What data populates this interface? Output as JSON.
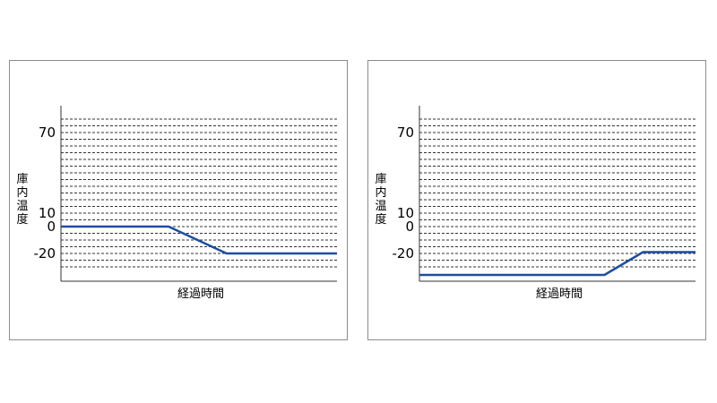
{
  "chart_data": [
    {
      "type": "line",
      "title": "",
      "ylabel": "庫内温度",
      "xlabel": "経過時間",
      "y_ticks": [
        {
          "value": 70,
          "label": "70"
        },
        {
          "value": 10,
          "label": "10"
        },
        {
          "value": 0,
          "label": "0"
        },
        {
          "value": -20,
          "label": "-20"
        }
      ],
      "grid": true,
      "grid_style": "dashed",
      "x": [
        0,
        0.39,
        0.6,
        1.0
      ],
      "series": [
        {
          "values": [
            0,
            0,
            -20,
            -20
          ]
        }
      ],
      "ylim": [
        -40,
        80
      ],
      "line_color": "#1f4e9c"
    },
    {
      "type": "line",
      "title": "",
      "ylabel": "庫内温度",
      "xlabel": "経過時間",
      "y_ticks": [
        {
          "value": 70,
          "label": "70"
        },
        {
          "value": 10,
          "label": "10"
        },
        {
          "value": 0,
          "label": "0"
        },
        {
          "value": -20,
          "label": "-20"
        }
      ],
      "grid": true,
      "grid_style": "dashed",
      "x": [
        0,
        0.67,
        0.81,
        1.0
      ],
      "series": [
        {
          "values": [
            -36,
            -36,
            -19,
            -19
          ]
        }
      ],
      "ylim": [
        -40,
        80
      ],
      "line_color": "#1f4e9c"
    }
  ]
}
